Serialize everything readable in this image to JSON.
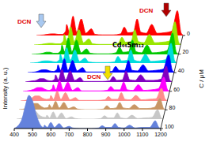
{
  "chart_data": {
    "type": "area",
    "title": "Cd₄₄Sm₁₂",
    "y_label": "Intensity (a. u.)",
    "z_label": "C / μM",
    "x": [
      400,
      440,
      460,
      480,
      500,
      520,
      540,
      560,
      565,
      580,
      600,
      620,
      645,
      670,
      700,
      720,
      760,
      820,
      860,
      880,
      900,
      930,
      950,
      970,
      1000,
      1030,
      1060,
      1100,
      1140,
      1170,
      1190,
      1200
    ],
    "xlim": [
      400,
      1200
    ],
    "xticks": [
      400,
      500,
      600,
      700,
      800,
      900,
      1000,
      1100,
      1200
    ],
    "ylim": [
      0,
      10
    ],
    "zlim": [
      0,
      100
    ],
    "zticks": [
      0,
      20,
      40,
      60,
      80,
      100
    ],
    "tick_labels": "x",
    "series": [
      {
        "z": 0,
        "color": "#ff0000",
        "values": [
          0,
          0.1,
          0.2,
          0.3,
          0.3,
          0.2,
          0.2,
          0.8,
          2.0,
          0.6,
          3.5,
          0.6,
          3.0,
          0.4,
          1.2,
          0.2,
          0.1,
          0.1,
          0.3,
          1.5,
          0.5,
          0.6,
          3.0,
          0.6,
          0.4,
          2.0,
          0.4,
          0.5,
          0.8,
          4.5,
          0.5,
          0.1
        ]
      },
      {
        "z": 10,
        "color": "#99e600",
        "values": [
          0,
          0.1,
          0.2,
          0.3,
          0.3,
          0.2,
          0.2,
          0.7,
          1.9,
          0.6,
          3.3,
          0.6,
          2.8,
          0.4,
          1.1,
          0.2,
          0.1,
          0.1,
          0.3,
          1.4,
          0.5,
          0.6,
          2.8,
          0.6,
          0.4,
          1.9,
          0.4,
          0.5,
          0.7,
          4.2,
          0.5,
          0.1
        ]
      },
      {
        "z": 20,
        "color": "#00c800",
        "values": [
          0,
          0.1,
          0.2,
          0.4,
          0.4,
          0.2,
          0.2,
          0.7,
          1.7,
          0.5,
          3.0,
          0.5,
          2.6,
          0.3,
          1.0,
          0.2,
          0.1,
          0.1,
          0.3,
          1.3,
          0.4,
          0.5,
          2.6,
          0.5,
          0.3,
          1.7,
          0.3,
          0.4,
          0.7,
          3.9,
          0.4,
          0.1
        ]
      },
      {
        "z": 30,
        "color": "#00dcdc",
        "values": [
          0,
          0.1,
          0.3,
          0.4,
          0.4,
          0.3,
          0.2,
          0.6,
          1.6,
          0.5,
          2.8,
          0.5,
          2.4,
          0.3,
          0.9,
          0.2,
          0.1,
          0.1,
          0.2,
          1.2,
          0.4,
          0.5,
          2.4,
          0.5,
          0.3,
          1.6,
          0.3,
          0.4,
          0.6,
          3.6,
          0.4,
          0.1
        ]
      },
      {
        "z": 40,
        "color": "#0000ff",
        "values": [
          0,
          0.1,
          0.3,
          0.5,
          0.5,
          0.3,
          0.2,
          0.6,
          1.4,
          0.4,
          2.5,
          0.4,
          2.2,
          0.3,
          0.9,
          0.1,
          0.1,
          0.1,
          0.2,
          1.1,
          0.4,
          0.4,
          2.2,
          0.4,
          0.3,
          1.4,
          0.3,
          0.4,
          0.6,
          3.2,
          0.4,
          0.1
        ]
      },
      {
        "z": 50,
        "color": "#8000c0",
        "values": [
          0,
          0.2,
          0.3,
          0.6,
          0.6,
          0.3,
          0.2,
          0.5,
          1.3,
          0.4,
          2.3,
          0.4,
          2.0,
          0.3,
          0.8,
          0.1,
          0.1,
          0.1,
          0.2,
          1.0,
          0.3,
          0.4,
          2.0,
          0.4,
          0.3,
          1.3,
          0.3,
          0.3,
          0.5,
          2.9,
          0.3,
          0.1
        ]
      },
      {
        "z": 60,
        "color": "#ff00ff",
        "values": [
          0,
          0.2,
          0.4,
          0.7,
          0.7,
          0.4,
          0.2,
          0.5,
          1.2,
          0.3,
          2.0,
          0.3,
          1.7,
          0.2,
          0.7,
          0.1,
          0.1,
          0.1,
          0.2,
          0.9,
          0.3,
          0.3,
          1.7,
          0.3,
          0.2,
          1.2,
          0.2,
          0.3,
          0.5,
          2.6,
          0.3,
          0.1
        ]
      },
      {
        "z": 70,
        "color": "#ff8c8c",
        "values": [
          0,
          0.2,
          0.5,
          0.9,
          0.9,
          0.5,
          0.3,
          0.4,
          1.0,
          0.3,
          1.8,
          0.3,
          1.5,
          0.2,
          0.6,
          0.1,
          0.1,
          0.1,
          0.2,
          0.8,
          0.3,
          0.3,
          1.5,
          0.3,
          0.2,
          1.0,
          0.2,
          0.3,
          0.4,
          2.3,
          0.3,
          0.1
        ]
      },
      {
        "z": 80,
        "color": "#c89664",
        "values": [
          0,
          0.2,
          0.6,
          1.1,
          1.1,
          0.6,
          0.3,
          0.4,
          0.9,
          0.3,
          1.5,
          0.3,
          1.3,
          0.2,
          0.5,
          0.1,
          0.0,
          0.0,
          0.1,
          0.7,
          0.2,
          0.3,
          1.3,
          0.3,
          0.2,
          0.9,
          0.2,
          0.2,
          0.4,
          2.0,
          0.2,
          0.0
        ]
      },
      {
        "z": 90,
        "color": "#c8c8c8",
        "values": [
          0,
          0.3,
          0.8,
          1.5,
          1.5,
          0.8,
          0.4,
          0.3,
          0.7,
          0.2,
          1.3,
          0.2,
          1.1,
          0.1,
          0.4,
          0.1,
          0.0,
          0.0,
          0.1,
          0.6,
          0.2,
          0.2,
          1.1,
          0.2,
          0.1,
          0.7,
          0.1,
          0.2,
          0.3,
          1.7,
          0.2,
          0.0
        ]
      },
      {
        "z": 100,
        "color": "#6482dc",
        "values": [
          0,
          1.5,
          4.0,
          6.0,
          5.0,
          2.5,
          0.8,
          0.2,
          0.6,
          0.2,
          1.1,
          0.2,
          0.9,
          0.1,
          0.4,
          0.1,
          0.0,
          0.0,
          0.1,
          0.5,
          0.2,
          0.2,
          0.9,
          0.2,
          0.1,
          0.6,
          0.1,
          0.2,
          0.2,
          1.4,
          0.2,
          0.0
        ]
      }
    ],
    "annotations": [
      {
        "text": "DCN",
        "color": "#a8c8f0"
      },
      {
        "text": "DCN",
        "color": "#f0e000"
      },
      {
        "text": "DCN",
        "color": "#b00000"
      }
    ]
  }
}
